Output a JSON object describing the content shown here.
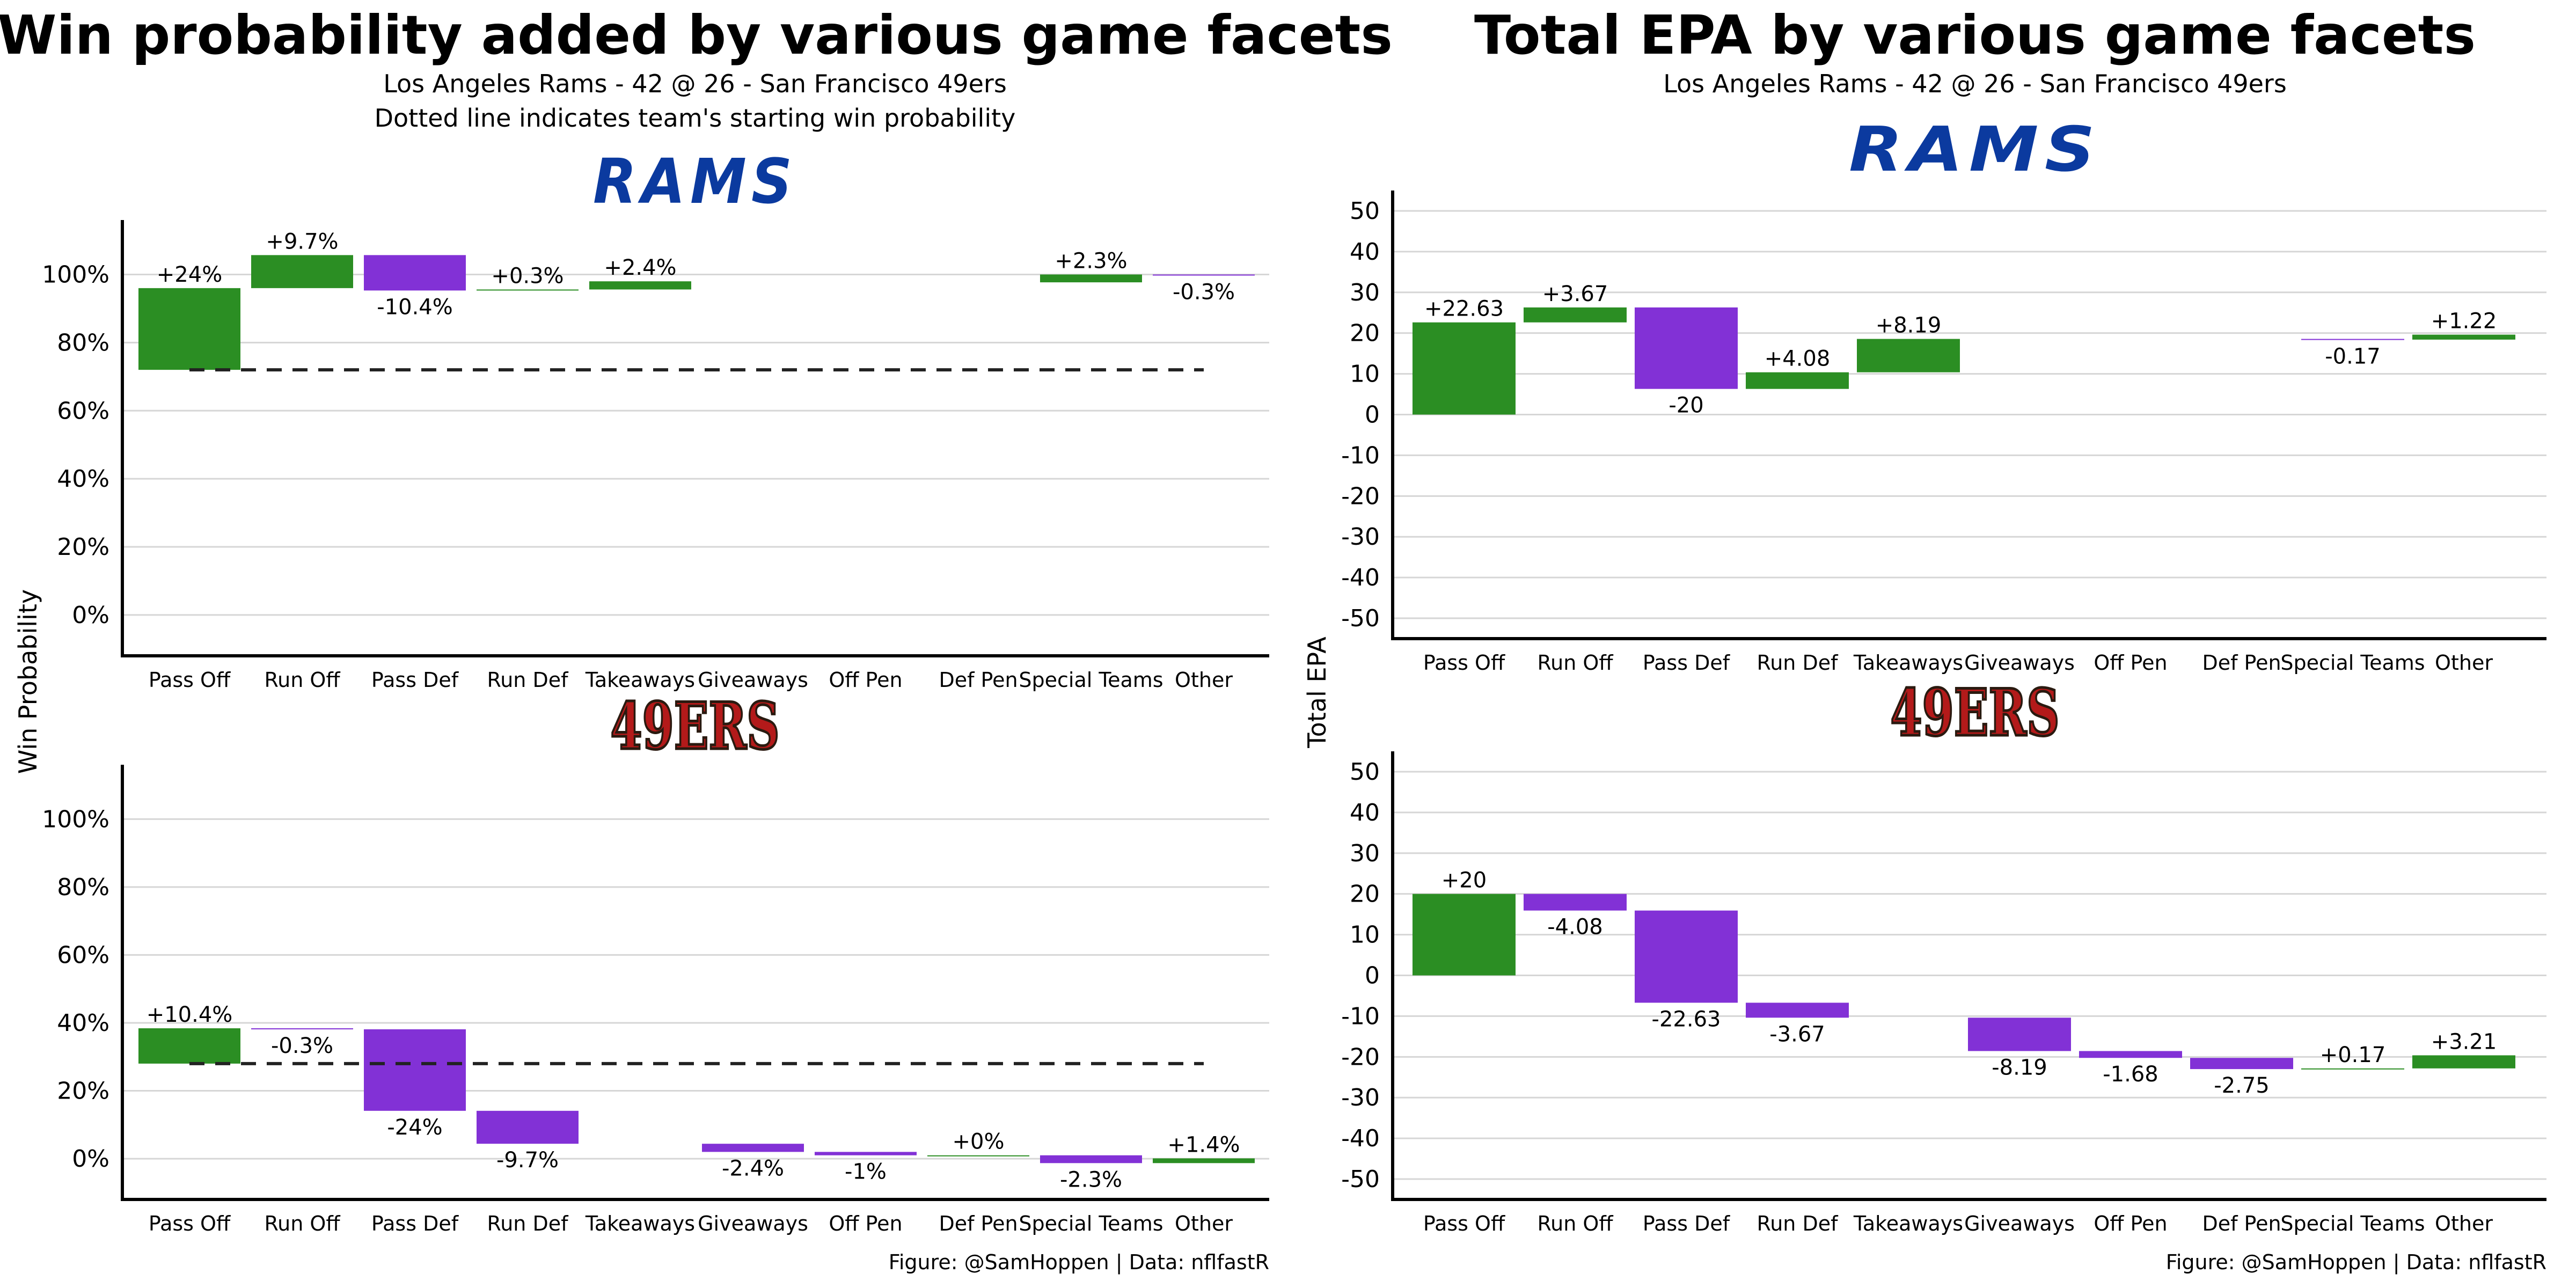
{
  "colors": {
    "positive": "#2b8e23",
    "negative": "#8231d6",
    "grid": "#d6d6d6",
    "axis": "#000000",
    "rams": "#0b3a9f",
    "niners": "#b31a1a"
  },
  "left_panel": {
    "title": "Win probability added by various game facets",
    "subtitle1": "Los Angeles Rams - 42 @ 26 - San Francisco 49ers",
    "subtitle2": "Dotted line indicates team's starting win probability",
    "ylabel": "Win Probability",
    "caption": "Figure: @SamHoppen | Data: nflfastR"
  },
  "right_panel": {
    "title": "Total EPA by various game facets",
    "subtitle1": "Los Angeles Rams - 42 @ 26 - San Francisco 49ers",
    "ylabel": "Total EPA",
    "caption": "Figure: @SamHoppen | Data: nflfastR"
  },
  "logos": {
    "rams": "RAMS",
    "niners": "49ERS"
  },
  "chart_data": [
    {
      "type": "bar",
      "subtype": "waterfall",
      "team": "rams",
      "metric": "wpa",
      "categories": [
        "Pass Off",
        "Run Off",
        "Pass Def",
        "Run Def",
        "Takeaways",
        "Giveaways",
        "Off Pen",
        "Def Pen",
        "Special Teams",
        "Other"
      ],
      "bars": [
        {
          "start": 72,
          "end": 96,
          "label": "+24%"
        },
        {
          "start": 96,
          "end": 105.7,
          "label": "+9.7%"
        },
        {
          "start": 105.7,
          "end": 95.3,
          "label": "-10.4%"
        },
        {
          "start": 95.3,
          "end": 95.6,
          "label": "+0.3%"
        },
        {
          "start": 95.6,
          "end": 98,
          "label": "+2.4%"
        },
        null,
        null,
        null,
        {
          "start": 97.7,
          "end": 100,
          "label": "+2.3%"
        },
        {
          "start": 100,
          "end": 99.7,
          "label": "-0.3%"
        }
      ],
      "ylim": [
        -12,
        116
      ],
      "yticks": [
        0,
        20,
        40,
        60,
        80,
        100
      ],
      "ytick_labels": [
        "0%",
        "20%",
        "40%",
        "60%",
        "80%",
        "100%"
      ],
      "baseline": 72
    },
    {
      "type": "bar",
      "subtype": "waterfall",
      "team": "niners",
      "metric": "wpa",
      "categories": [
        "Pass Off",
        "Run Off",
        "Pass Def",
        "Run Def",
        "Takeaways",
        "Giveaways",
        "Off Pen",
        "Def Pen",
        "Special Teams",
        "Other"
      ],
      "bars": [
        {
          "start": 28,
          "end": 38.4,
          "label": "+10.4%"
        },
        {
          "start": 38.4,
          "end": 38.1,
          "label": "-0.3%"
        },
        {
          "start": 38.1,
          "end": 14.1,
          "label": "-24%"
        },
        {
          "start": 14.1,
          "end": 4.4,
          "label": "-9.7%"
        },
        null,
        {
          "start": 4.4,
          "end": 2,
          "label": "-2.4%"
        },
        {
          "start": 2,
          "end": 1,
          "label": "-1%"
        },
        {
          "start": 1,
          "end": 1,
          "label": "+0%"
        },
        {
          "start": 1,
          "end": -1.3,
          "label": "-2.3%"
        },
        {
          "start": -1.3,
          "end": 0.1,
          "label": "+1.4%"
        }
      ],
      "ylim": [
        -12,
        116
      ],
      "yticks": [
        0,
        20,
        40,
        60,
        80,
        100
      ],
      "ytick_labels": [
        "0%",
        "20%",
        "40%",
        "60%",
        "80%",
        "100%"
      ],
      "baseline": 28
    },
    {
      "type": "bar",
      "subtype": "waterfall",
      "team": "rams",
      "metric": "epa",
      "categories": [
        "Pass Off",
        "Run Off",
        "Pass Def",
        "Run Def",
        "Takeaways",
        "Giveaways",
        "Off Pen",
        "Def Pen",
        "Special Teams",
        "Other"
      ],
      "bars": [
        {
          "start": 0,
          "end": 22.63,
          "label": "+22.63"
        },
        {
          "start": 22.63,
          "end": 26.3,
          "label": "+3.67"
        },
        {
          "start": 26.3,
          "end": 6.3,
          "label": "-20"
        },
        {
          "start": 6.3,
          "end": 10.38,
          "label": "+4.08"
        },
        {
          "start": 10.38,
          "end": 18.57,
          "label": "+8.19"
        },
        null,
        null,
        null,
        {
          "start": 18.57,
          "end": 18.4,
          "label": "-0.17"
        },
        {
          "start": 18.4,
          "end": 19.62,
          "label": "+1.22"
        }
      ],
      "ylim": [
        -55,
        55
      ],
      "yticks": [
        -50,
        -40,
        -30,
        -20,
        -10,
        0,
        10,
        20,
        30,
        40,
        50
      ],
      "ytick_labels": [
        "-50",
        "-40",
        "-30",
        "-20",
        "-10",
        "0",
        "10",
        "20",
        "30",
        "40",
        "50"
      ]
    },
    {
      "type": "bar",
      "subtype": "waterfall",
      "team": "niners",
      "metric": "epa",
      "categories": [
        "Pass Off",
        "Run Off",
        "Pass Def",
        "Run Def",
        "Takeaways",
        "Giveaways",
        "Off Pen",
        "Def Pen",
        "Special Teams",
        "Other"
      ],
      "bars": [
        {
          "start": 0,
          "end": 20,
          "label": "+20"
        },
        {
          "start": 20,
          "end": 15.92,
          "label": "-4.08"
        },
        {
          "start": 15.92,
          "end": -6.71,
          "label": "-22.63"
        },
        {
          "start": -6.71,
          "end": -10.38,
          "label": "-3.67"
        },
        null,
        {
          "start": -10.38,
          "end": -18.57,
          "label": "-8.19"
        },
        {
          "start": -18.57,
          "end": -20.25,
          "label": "-1.68"
        },
        {
          "start": -20.25,
          "end": -23,
          "label": "-2.75"
        },
        {
          "start": -23,
          "end": -22.83,
          "label": "+0.17"
        },
        {
          "start": -22.83,
          "end": -19.62,
          "label": "+3.21"
        }
      ],
      "ylim": [
        -55,
        55
      ],
      "yticks": [
        -50,
        -40,
        -30,
        -20,
        -10,
        0,
        10,
        20,
        30,
        40,
        50
      ],
      "ytick_labels": [
        "-50",
        "-40",
        "-30",
        "-20",
        "-10",
        "0",
        "10",
        "20",
        "30",
        "40",
        "50"
      ]
    }
  ]
}
